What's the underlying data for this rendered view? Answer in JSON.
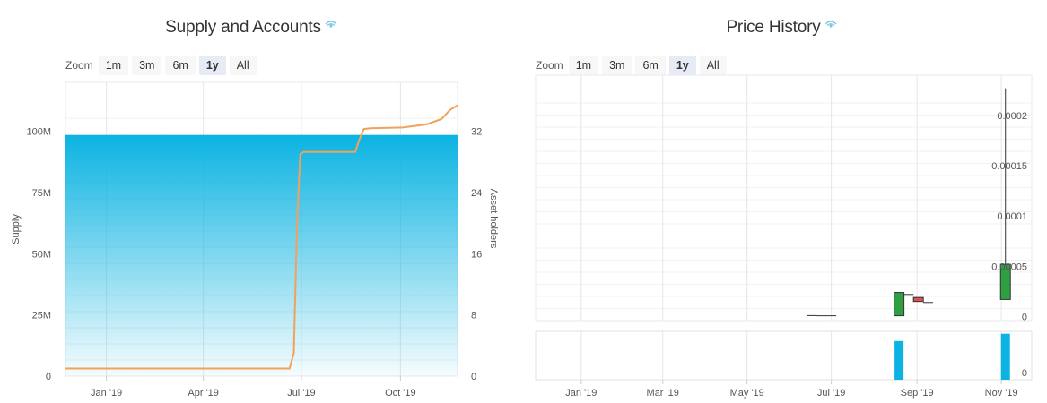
{
  "charts": {
    "supply": {
      "title": "Supply and Accounts",
      "zoom_label": "Zoom",
      "zoom_buttons": [
        "1m",
        "3m",
        "6m",
        "1y",
        "All"
      ],
      "active_zoom": "1y"
    },
    "price": {
      "title": "Price History",
      "zoom_label": "Zoom",
      "zoom_buttons": [
        "1m",
        "3m",
        "6m",
        "1y",
        "All"
      ],
      "active_zoom": "1y"
    }
  },
  "colors": {
    "supply_fill_top": "#0bb3e2",
    "holders_line": "#f2a15a",
    "candle_up": "#2ea043",
    "candle_down": "#d9534f",
    "volume": "#0bb3e2",
    "grid": "#e6e6e6",
    "eye_icon": "#7cc8e0"
  },
  "chart_data": [
    {
      "type": "area",
      "title": "Supply and Accounts",
      "xlabel": "",
      "ylabel": "Supply",
      "y2label": "Asset holders",
      "x_range": [
        "2018-11-24",
        "2019-11-23"
      ],
      "x_ticks": [
        {
          "date": "2019-01-01",
          "label": "Jan '19"
        },
        {
          "date": "2019-04-01",
          "label": "Apr '19"
        },
        {
          "date": "2019-07-01",
          "label": "Jul '19"
        },
        {
          "date": "2019-10-01",
          "label": "Oct '19"
        }
      ],
      "ylim": [
        0,
        120000000
      ],
      "y_ticks": [
        {
          "value": 0,
          "label": "0"
        },
        {
          "value": 25000000,
          "label": "25M"
        },
        {
          "value": 50000000,
          "label": "50M"
        },
        {
          "value": 75000000,
          "label": "75M"
        },
        {
          "value": 100000000,
          "label": "100M"
        }
      ],
      "y2lim": [
        0,
        38.4
      ],
      "y2_ticks": [
        {
          "value": 0,
          "label": "0"
        },
        {
          "value": 8,
          "label": "8"
        },
        {
          "value": 16,
          "label": "16"
        },
        {
          "value": 24,
          "label": "24"
        },
        {
          "value": 32,
          "label": "32"
        }
      ],
      "series": [
        {
          "axis": "left",
          "kind": "area",
          "points": [
            [
              "2018-11-24",
              98500000
            ],
            [
              "2019-11-23",
              98500000
            ]
          ]
        },
        {
          "name": "Asset holders",
          "axis": "right",
          "kind": "line",
          "points": [
            [
              "2018-11-24",
              1
            ],
            [
              "2019-06-20",
              1
            ],
            [
              "2019-06-24",
              3
            ],
            [
              "2019-06-27",
              20
            ],
            [
              "2019-06-30",
              29
            ],
            [
              "2019-07-03",
              29.3
            ],
            [
              "2019-08-20",
              29.3
            ],
            [
              "2019-08-24",
              31
            ],
            [
              "2019-08-28",
              32.3
            ],
            [
              "2019-09-03",
              32.4
            ],
            [
              "2019-10-03",
              32.5
            ],
            [
              "2019-10-25",
              32.9
            ],
            [
              "2019-11-08",
              33.6
            ],
            [
              "2019-11-16",
              34.8
            ],
            [
              "2019-11-23",
              35.4
            ]
          ]
        }
      ],
      "grid": true
    },
    {
      "type": "candlestick",
      "title": "Price History",
      "xlabel": "",
      "ylabel": "",
      "x_range": [
        "2018-11-29",
        "2019-11-23"
      ],
      "x_ticks": [
        {
          "date": "2019-01-01",
          "label": "Jan '19"
        },
        {
          "date": "2019-03-01",
          "label": "Mar '19"
        },
        {
          "date": "2019-05-01",
          "label": "May '19"
        },
        {
          "date": "2019-07-01",
          "label": "Jul '19"
        },
        {
          "date": "2019-09-01",
          "label": "Sep '19"
        },
        {
          "date": "2019-11-01",
          "label": "Nov '19"
        }
      ],
      "ylim": [
        -4e-06,
        0.00024
      ],
      "y_ticks": [
        {
          "value": 0,
          "label": "0"
        },
        {
          "value": 5e-05,
          "label": "0.00005"
        },
        {
          "value": 0.0001,
          "label": "0.0001"
        },
        {
          "value": 0.00015,
          "label": "0.00015"
        },
        {
          "value": 0.0002,
          "label": "0.0002"
        }
      ],
      "candles": [
        {
          "date": "2019-06-17",
          "open": 1e-06,
          "high": 1e-06,
          "low": 1e-06,
          "close": 1e-06
        },
        {
          "date": "2019-06-24",
          "open": 8e-07,
          "high": 8e-07,
          "low": 8e-07,
          "close": 8e-07
        },
        {
          "date": "2019-07-01",
          "open": 8e-07,
          "high": 8e-07,
          "low": 8e-07,
          "close": 8e-07
        },
        {
          "date": "2019-08-19",
          "open": 8e-07,
          "high": 2.4e-05,
          "low": 8e-07,
          "close": 2.4e-05
        },
        {
          "date": "2019-08-26",
          "open": 2.2e-05,
          "high": 2.2e-05,
          "low": 2.2e-05,
          "close": 2.2e-05
        },
        {
          "date": "2019-09-02",
          "open": 1.9e-05,
          "high": 1.9e-05,
          "low": 1.5e-05,
          "close": 1.5e-05
        },
        {
          "date": "2019-09-09",
          "open": 1.4e-05,
          "high": 1.4e-05,
          "low": 1.4e-05,
          "close": 1.4e-05
        },
        {
          "date": "2019-11-04",
          "open": 1.7e-05,
          "high": 0.000227,
          "low": 1.7e-05,
          "close": 5.2e-05
        }
      ],
      "volume": {
        "ylim": [
          0,
          1
        ],
        "y_ticks": [
          {
            "value": 0,
            "label": "0"
          }
        ],
        "bars": [
          {
            "date": "2019-08-19",
            "value": 0.8
          },
          {
            "date": "2019-11-04",
            "value": 0.95
          }
        ]
      },
      "grid": true
    }
  ]
}
